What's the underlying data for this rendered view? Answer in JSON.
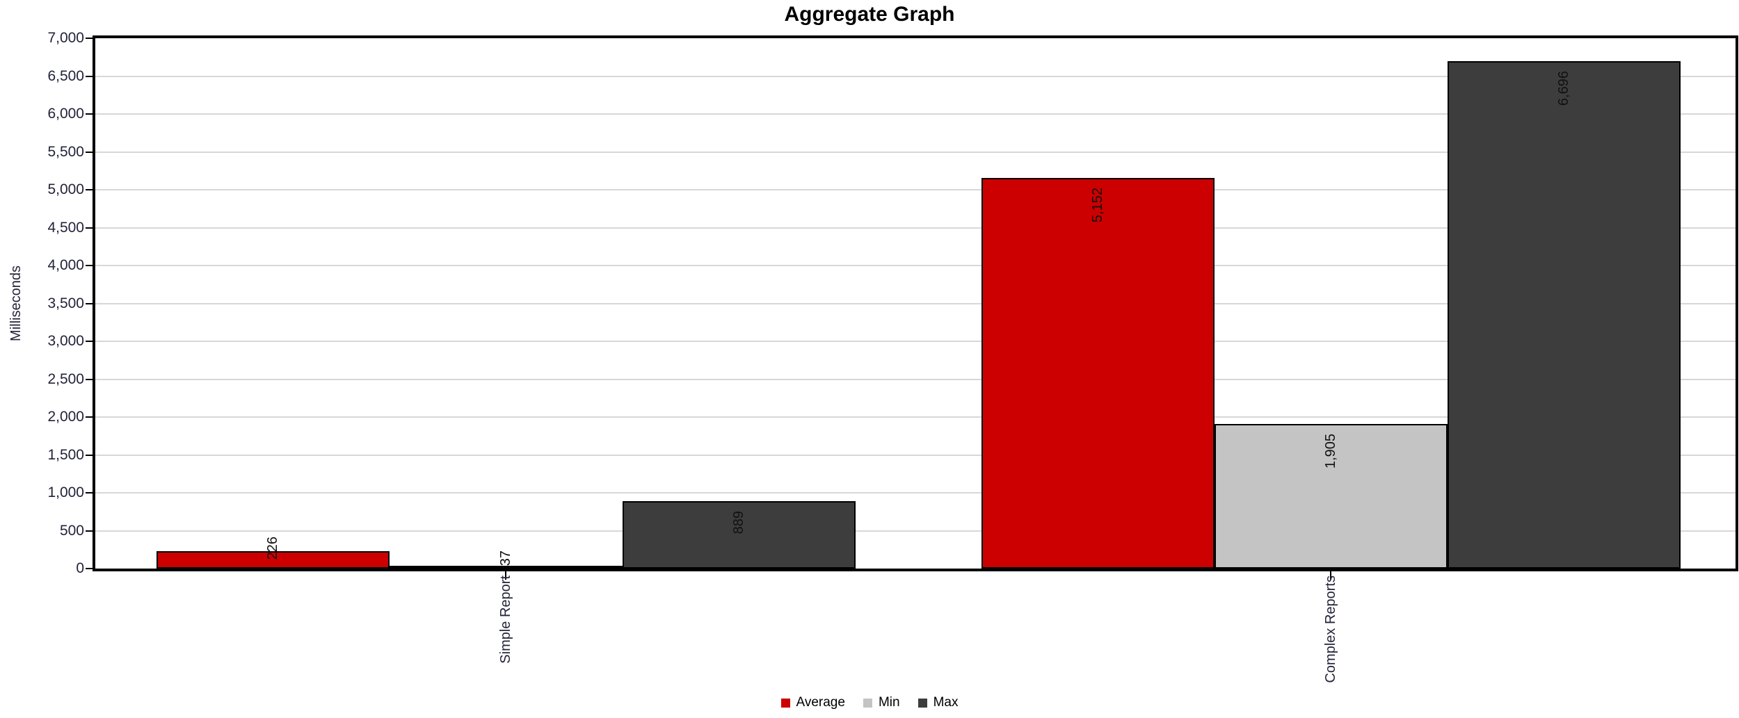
{
  "window": {
    "background": "#ffffff"
  },
  "chart_data": {
    "type": "bar",
    "title": "Aggregate Graph",
    "ylabel": "Milliseconds",
    "xlabel": "",
    "ylim": [
      0,
      7000
    ],
    "ytick_step": 500,
    "ytick_labels": [
      "0",
      "500",
      "1,000",
      "1,500",
      "2,000",
      "2,500",
      "3,000",
      "3,500",
      "4,000",
      "4,500",
      "5,000",
      "5,500",
      "6,000",
      "6,500",
      "7,000"
    ],
    "categories": [
      "Simple Report",
      "Complex Reports"
    ],
    "series": [
      {
        "name": "Average",
        "color": "#cc0000",
        "values": [
          226,
          5152
        ],
        "value_labels": [
          "226",
          "5,152"
        ]
      },
      {
        "name": "Min",
        "color": "#c4c4c4",
        "values": [
          37,
          1905
        ],
        "value_labels": [
          "37",
          "1,905"
        ]
      },
      {
        "name": "Max",
        "color": "#3d3d3d",
        "values": [
          889,
          6696
        ],
        "value_labels": [
          "889",
          "6,696"
        ]
      }
    ],
    "grid": true,
    "legend_position": "bottom"
  },
  "style": {
    "axis_color": "#000000",
    "grid_color": "#d7d7d7",
    "tick_label_color": "#23233a",
    "bar_border_color": "#000000",
    "value_label_color": "#111111",
    "legend_text_color": "#000000"
  }
}
